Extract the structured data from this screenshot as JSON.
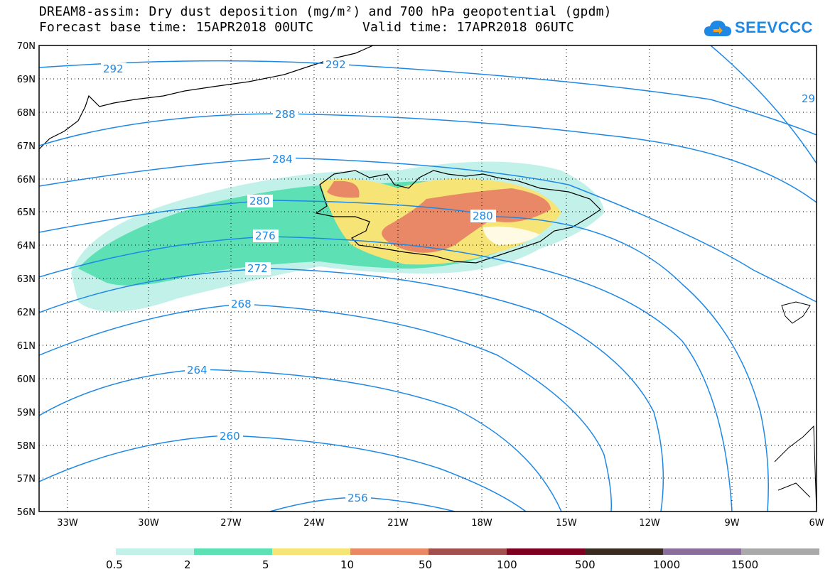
{
  "title": {
    "line1": "DREAM8-assim: Dry dust deposition (mg/m²) and 700 hPa geopotential (gpdm)",
    "base_time": "Forecast base time: 15APR2018 00UTC",
    "valid_time": "Valid time: 17APR2018 06UTC"
  },
  "logo": {
    "text": "SEEVCCC",
    "icon": "cloud-icon"
  },
  "map": {
    "lat_labels": [
      "70N",
      "69N",
      "68N",
      "67N",
      "66N",
      "65N",
      "64N",
      "63N",
      "62N",
      "61N",
      "60N",
      "59N",
      "58N",
      "57N",
      "56N"
    ],
    "lon_labels": [
      "33W",
      "30W",
      "27W",
      "24W",
      "21W",
      "18W",
      "15W",
      "12W",
      "9W",
      "6W"
    ],
    "contour_labels": [
      {
        "text": "292"
      },
      {
        "text": "292"
      },
      {
        "text": "29"
      },
      {
        "text": "288"
      },
      {
        "text": "284"
      },
      {
        "text": "280"
      },
      {
        "text": "280"
      },
      {
        "text": "276"
      },
      {
        "text": "272"
      },
      {
        "text": "268"
      },
      {
        "text": "264"
      },
      {
        "text": "260"
      },
      {
        "text": "256"
      }
    ],
    "contour_color": "#1e88e5",
    "region": "Iceland"
  },
  "legend": {
    "labels": [
      "0.5",
      "2",
      "5",
      "10",
      "50",
      "100",
      "500",
      "1000",
      "1500"
    ],
    "colors": [
      "#c2f1ea",
      "#5de0b4",
      "#f7e477",
      "#e88866",
      "#a14f4f",
      "#7e0020",
      "#392b20",
      "#8c6e9d",
      "#a9a9a9"
    ]
  }
}
